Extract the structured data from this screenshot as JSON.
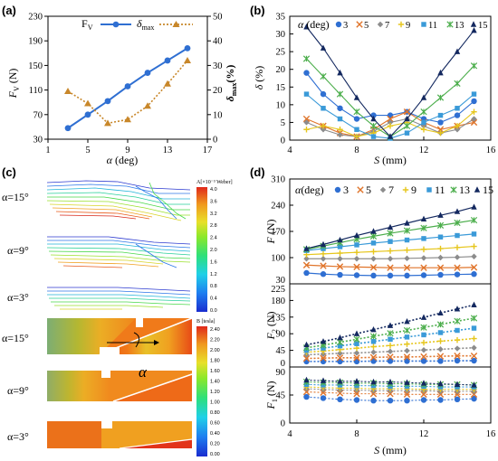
{
  "panel_labels": [
    "(a)",
    "(b)",
    "(c)",
    "(d)"
  ],
  "legend_alpha_label": "α (deg)",
  "colors": {
    "3": "#2f6fd2",
    "5": "#e0742a",
    "7": "#8c8c8c",
    "9": "#e6c61c",
    "11": "#3a9ad8",
    "13": "#4cae4c",
    "15": "#13285f",
    "fv": "#2f6fd2",
    "dmax": "#c8872a"
  },
  "chart_data": [
    {
      "id": "a",
      "type": "line",
      "xlabel": "α (deg)",
      "ylabel_left": "F_V (N)",
      "ylabel_right": "δ_max(%)",
      "xlim": [
        1,
        17
      ],
      "xticks": [
        "1",
        "5",
        "9",
        "13",
        "17"
      ],
      "ylim_left": [
        30,
        230
      ],
      "yticks_left": [
        "30",
        "70",
        "110",
        "150",
        "190",
        "230"
      ],
      "ylim_right": [
        0,
        50
      ],
      "yticks_right": [
        "0",
        "10",
        "20",
        "30",
        "40",
        "50"
      ],
      "x": [
        3,
        5,
        7,
        9,
        11,
        13,
        15
      ],
      "series": [
        {
          "name": "F_V",
          "axis": "left",
          "values": [
            48,
            70,
            92,
            116,
            138,
            158,
            178
          ]
        },
        {
          "name": "δ_max",
          "axis": "right",
          "values": [
            19.5,
            14.5,
            6.5,
            8,
            13.5,
            22.5,
            32
          ]
        }
      ]
    },
    {
      "id": "b",
      "type": "line",
      "xlabel": "S (mm)",
      "ylabel": "δ (%)",
      "xlim": [
        4,
        16
      ],
      "xticks": [
        "4",
        "8",
        "12",
        "16"
      ],
      "ylim": [
        0,
        35
      ],
      "yticks": [
        "0",
        "5",
        "10",
        "15",
        "20",
        "25",
        "30",
        "35"
      ],
      "x": [
        5,
        6,
        7,
        8,
        9,
        10,
        11,
        12,
        13,
        14,
        15
      ],
      "series": [
        {
          "name": "3",
          "values": [
            19,
            13,
            9,
            6,
            7,
            7,
            8,
            6,
            5,
            7,
            11
          ]
        },
        {
          "name": "5",
          "values": [
            6,
            4,
            2,
            1,
            3,
            6,
            8,
            5,
            3,
            4,
            5
          ]
        },
        {
          "name": "7",
          "values": [
            5,
            3,
            1.5,
            1,
            2.5,
            5,
            6,
            4,
            2,
            3,
            6
          ]
        },
        {
          "name": "9",
          "values": [
            3,
            4,
            3,
            1,
            2,
            4,
            5,
            3,
            2,
            4,
            8
          ]
        },
        {
          "name": "11",
          "values": [
            13,
            9,
            6,
            3,
            1,
            0.5,
            2,
            5,
            7,
            9,
            13
          ]
        },
        {
          "name": "13",
          "values": [
            23,
            18,
            13,
            8,
            4,
            1,
            4,
            8,
            12,
            16,
            21
          ]
        },
        {
          "name": "15",
          "values": [
            32,
            26,
            19,
            12,
            6,
            1,
            6,
            12,
            19,
            25,
            31
          ]
        }
      ]
    },
    {
      "id": "d-top",
      "type": "line",
      "ylabel": "F (N)",
      "ylim": [
        30,
        310
      ],
      "yticks": [
        "30",
        "100",
        "170",
        "240",
        "310"
      ],
      "x": [
        5,
        6,
        7,
        8,
        9,
        10,
        11,
        12,
        13,
        14,
        15
      ],
      "series": [
        {
          "name": "3",
          "values": [
            59,
            56,
            54,
            53,
            52,
            52,
            52,
            53,
            54,
            55,
            56
          ]
        },
        {
          "name": "5",
          "values": [
            80,
            78,
            76,
            75,
            74,
            73,
            73,
            73,
            73,
            73,
            74
          ]
        },
        {
          "name": "7",
          "values": [
            97,
            97,
            97,
            97,
            97,
            97,
            98,
            99,
            100,
            101,
            103
          ]
        },
        {
          "name": "9",
          "values": [
            108,
            110,
            112,
            114,
            116,
            118,
            120,
            122,
            124,
            127,
            130
          ]
        },
        {
          "name": "11",
          "values": [
            119,
            124,
            129,
            134,
            139,
            143,
            147,
            151,
            155,
            159,
            163
          ]
        },
        {
          "name": "13",
          "values": [
            122,
            131,
            140,
            149,
            157,
            165,
            172,
            179,
            186,
            193,
            200
          ]
        },
        {
          "name": "15",
          "values": [
            124,
            135,
            147,
            159,
            170,
            181,
            192,
            203,
            213,
            223,
            235
          ]
        }
      ]
    },
    {
      "id": "d-mid",
      "type": "line",
      "ylabel": "F2 (N)",
      "ylim": [
        0,
        225
      ],
      "yticks": [
        "0",
        "45",
        "90",
        "135",
        "180",
        "225"
      ],
      "x": [
        5,
        6,
        7,
        8,
        9,
        10,
        11,
        12,
        13,
        14,
        15
      ],
      "series": [
        {
          "name": "3",
          "values": [
            15,
            15,
            15,
            15,
            16,
            16,
            16,
            16,
            16,
            17,
            17
          ]
        },
        {
          "name": "5",
          "values": [
            23,
            24,
            25,
            25,
            26,
            27,
            27,
            28,
            29,
            30,
            30
          ]
        },
        {
          "name": "7",
          "values": [
            33,
            35,
            37,
            38,
            40,
            42,
            44,
            46,
            48,
            50,
            52
          ]
        },
        {
          "name": "9",
          "values": [
            40,
            43,
            47,
            51,
            55,
            58,
            62,
            66,
            70,
            73,
            77
          ]
        },
        {
          "name": "11",
          "values": [
            45,
            51,
            57,
            63,
            69,
            75,
            81,
            87,
            93,
            99,
            105
          ]
        },
        {
          "name": "13",
          "values": [
            52,
            59,
            67,
            75,
            83,
            91,
            99,
            107,
            115,
            124,
            132
          ]
        },
        {
          "name": "15",
          "values": [
            60,
            69,
            79,
            90,
            101,
            112,
            123,
            134,
            146,
            157,
            168
          ]
        }
      ]
    },
    {
      "id": "d-bot",
      "type": "line",
      "xlabel": "S (mm)",
      "ylabel": "F1 (N)",
      "xlim": [
        4,
        16
      ],
      "xticks": [
        "4",
        "8",
        "12",
        "16"
      ],
      "ylim": [
        0,
        90
      ],
      "yticks": [
        "0",
        "45",
        "90"
      ],
      "x": [
        5,
        6,
        7,
        8,
        9,
        10,
        11,
        12,
        13,
        14,
        15
      ],
      "series": [
        {
          "name": "3",
          "values": [
            42,
            40,
            38,
            37,
            36,
            36,
            36,
            37,
            37,
            38,
            39
          ]
        },
        {
          "name": "5",
          "values": [
            50,
            49,
            48,
            47,
            47,
            47,
            46,
            46,
            46,
            46,
            46
          ]
        },
        {
          "name": "7",
          "values": [
            55,
            54,
            53,
            53,
            52,
            52,
            52,
            52,
            51,
            51,
            51
          ]
        },
        {
          "name": "9",
          "values": [
            58,
            57,
            56,
            56,
            55,
            55,
            55,
            54,
            54,
            54,
            54
          ]
        },
        {
          "name": "11",
          "values": [
            62,
            61,
            61,
            60,
            60,
            59,
            59,
            59,
            58,
            58,
            58
          ]
        },
        {
          "name": "13",
          "values": [
            66,
            65,
            65,
            64,
            64,
            63,
            63,
            62,
            62,
            62,
            61
          ]
        },
        {
          "name": "15",
          "values": [
            69,
            68,
            67,
            67,
            66,
            66,
            65,
            64,
            63,
            62,
            61
          ]
        }
      ]
    }
  ],
  "panel_c": {
    "alpha_labels": [
      "α=15°",
      "α=9°",
      "α=3°",
      "α=15°",
      "α=9°",
      "α=3°"
    ],
    "colorbar_top_title": "A[×10⁻³ Weber]",
    "colorbar_top_ticks": [
      "4.0",
      "3.6",
      "3.2",
      "2.8",
      "2.4",
      "2.0",
      "1.6",
      "1.2",
      "0.8",
      "0.4",
      "0.0"
    ],
    "colorbar_bottom_title": "B [tesla]",
    "colorbar_bottom_ticks": [
      "2.40",
      "2.20",
      "2.00",
      "1.80",
      "1.60",
      "1.40",
      "1.20",
      "1.00",
      "0.80",
      "0.60",
      "0.40",
      "0.20",
      "0.00"
    ],
    "angle_symbol": "α"
  }
}
